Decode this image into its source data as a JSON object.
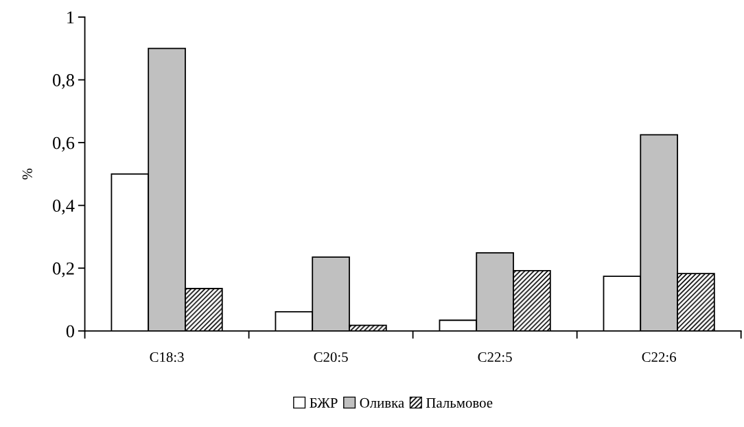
{
  "chart_data": {
    "type": "bar",
    "ylabel": "%",
    "categories": [
      "C18:3",
      "C20:5",
      "C22:5",
      "C22:6"
    ],
    "series": [
      {
        "name": "БЖР",
        "color": "#ffffff",
        "values": [
          0.5,
          0.061,
          0.034,
          0.174
        ]
      },
      {
        "name": "Оливка",
        "color": "#c0c0c0",
        "values": [
          0.9,
          0.235,
          0.249,
          0.625
        ]
      },
      {
        "name": "Пальмовое",
        "color": "#000000",
        "values": [
          0.135,
          0.018,
          0.192,
          0.183
        ]
      }
    ],
    "ylim": [
      0,
      1
    ],
    "yticks": [
      {
        "value": 0,
        "label": "0"
      },
      {
        "value": 0.2,
        "label": "0,2"
      },
      {
        "value": 0.4,
        "label": "0,4"
      },
      {
        "value": 0.6,
        "label": "0,6"
      },
      {
        "value": 0.8,
        "label": "0,8"
      },
      {
        "value": 1,
        "label": "1"
      }
    ],
    "grid": false,
    "legend": "bottom"
  }
}
